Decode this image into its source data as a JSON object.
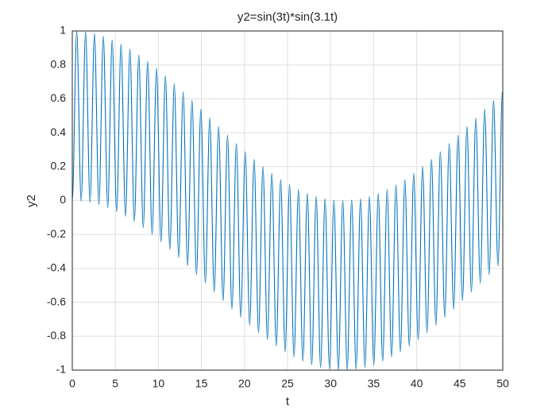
{
  "chart_data": {
    "type": "line",
    "title": "y2=sin(3t)*sin(3.1t)",
    "x_label": "t",
    "y_label": "y2",
    "color": "#0072bd",
    "grid": true,
    "x": [
      0,
      0.515,
      1.03,
      1.545,
      2.06,
      2.575,
      3.09,
      3.605,
      4.12,
      4.635,
      5.15,
      5.665,
      6.18,
      6.695,
      7.21,
      7.725,
      8.24,
      8.755,
      9.27,
      9.785,
      10.3,
      10.816,
      11.331,
      11.846,
      12.361,
      12.876,
      13.391,
      13.906,
      14.421,
      14.936,
      15.451,
      15.966,
      16.481,
      16.996,
      17.511,
      18.026,
      18.541,
      19.056,
      19.571,
      20.086,
      20.601,
      21.116,
      21.631,
      22.146,
      22.661,
      23.176,
      23.691,
      24.206,
      24.721,
      25.236,
      25.751,
      26.266,
      26.781,
      27.296,
      27.811,
      28.326,
      28.841,
      29.356,
      29.871,
      30.386,
      30.901,
      31.416,
      31.931,
      32.447,
      32.962,
      33.477,
      33.992,
      34.507,
      35.022,
      35.537,
      36.052,
      36.567,
      37.082,
      37.597,
      38.112,
      38.627,
      39.142,
      39.657,
      40.172,
      40.687,
      41.202,
      41.717,
      42.232,
      42.747,
      43.262,
      43.777,
      44.292,
      44.807,
      45.322,
      45.837,
      46.352,
      46.867,
      47.382,
      47.897,
      48.412,
      48.927,
      49.442,
      49.957,
      50
    ],
    "values": [
      0,
      0.999,
      -0.003,
      0.994,
      -0.011,
      0.984,
      -0.024,
      0.968,
      -0.042,
      0.947,
      -0.065,
      0.922,
      -0.093,
      0.892,
      -0.124,
      0.858,
      -0.16,
      0.82,
      -0.2,
      0.779,
      -0.243,
      0.735,
      -0.288,
      0.688,
      -0.336,
      0.64,
      -0.385,
      0.59,
      -0.436,
      0.539,
      -0.487,
      0.487,
      -0.539,
      0.436,
      -0.59,
      0.385,
      -0.64,
      0.336,
      -0.688,
      0.288,
      -0.735,
      0.243,
      -0.779,
      0.2,
      -0.82,
      0.16,
      -0.858,
      0.124,
      -0.892,
      0.093,
      -0.922,
      0.065,
      -0.947,
      0.042,
      -0.968,
      0.024,
      -0.984,
      0.011,
      -0.994,
      0.003,
      -0.999,
      0,
      -0.999,
      0.003,
      -0.994,
      0.011,
      -0.984,
      0.024,
      -0.968,
      0.042,
      -0.947,
      0.065,
      -0.922,
      0.093,
      -0.892,
      0.124,
      -0.858,
      0.16,
      -0.82,
      0.2,
      -0.779,
      0.243,
      -0.735,
      0.288,
      -0.688,
      0.336,
      -0.64,
      0.385,
      -0.59,
      0.436,
      -0.539,
      0.487,
      -0.487,
      0.539,
      -0.436,
      0.59,
      -0.385,
      0.64,
      0.624
    ],
    "xlim": [
      0,
      50
    ],
    "xticks": [
      0,
      5,
      10,
      15,
      20,
      25,
      30,
      35,
      40,
      45,
      50
    ],
    "ylim": [
      -1,
      1
    ],
    "yticks": [
      -1,
      -0.8,
      -0.6,
      -0.4,
      -0.2,
      0,
      0.2,
      0.4,
      0.6,
      0.8,
      1
    ]
  }
}
